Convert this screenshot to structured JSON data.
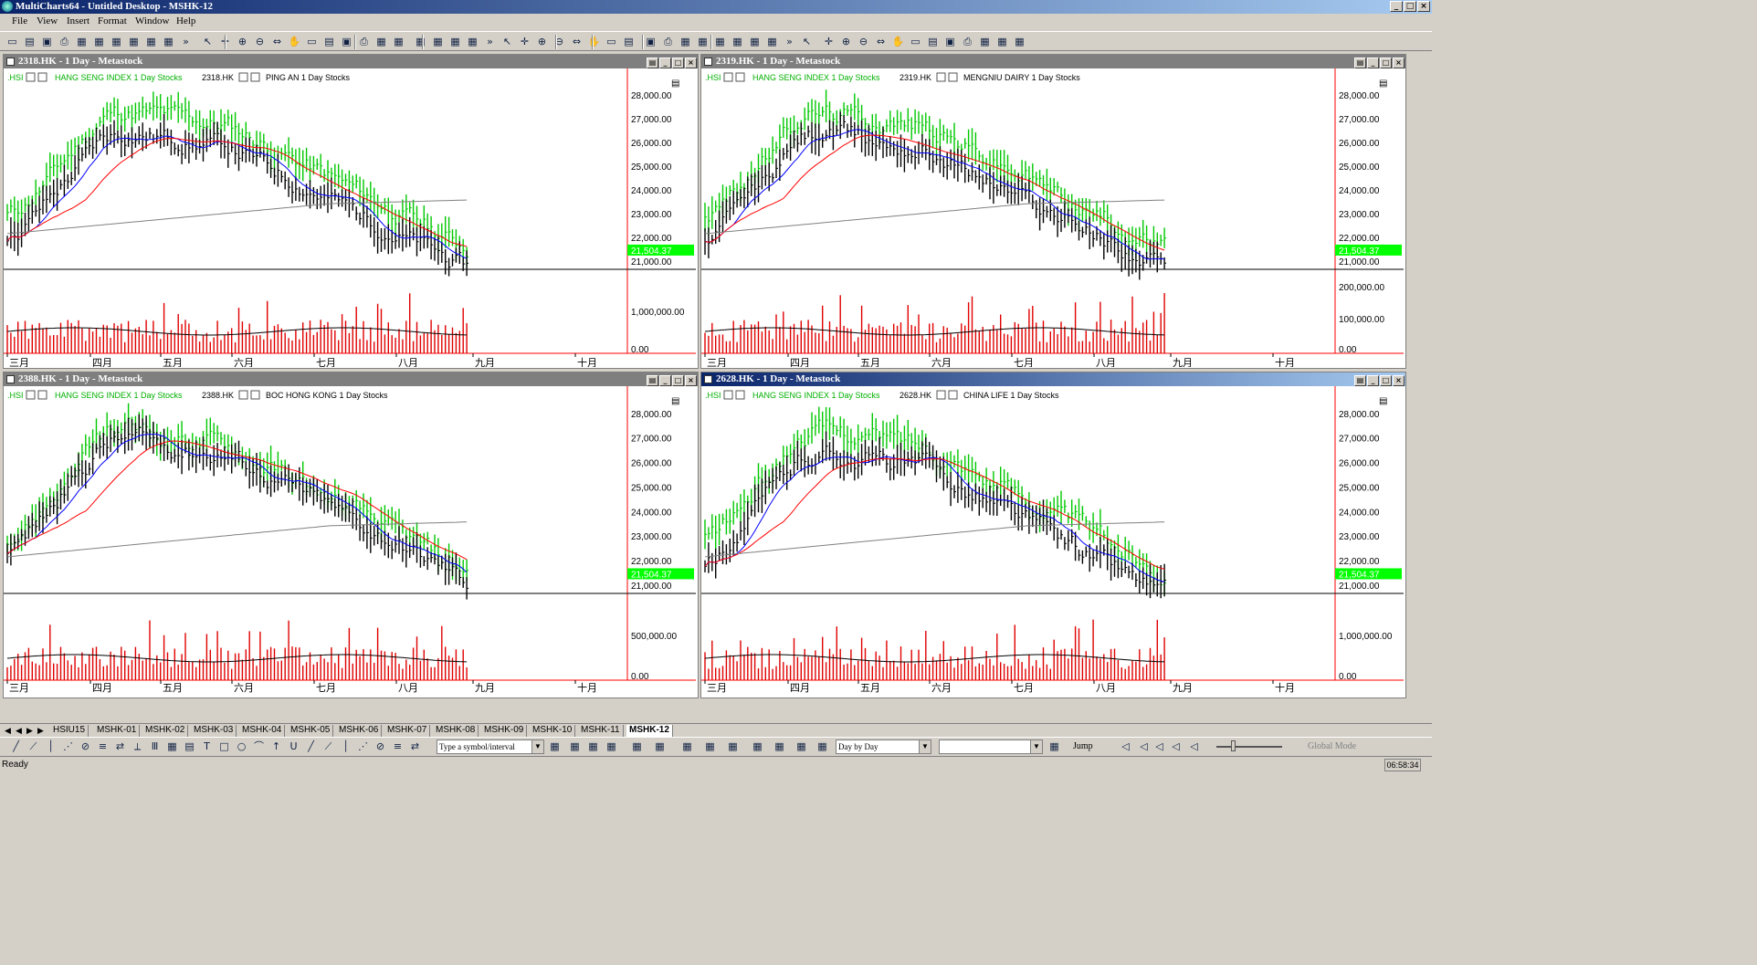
{
  "app": {
    "title": "MultiCharts64 - Untitled Desktop - MSHK-12",
    "menus": [
      "File",
      "View",
      "Insert",
      "Format",
      "Window",
      "Help"
    ]
  },
  "toolbar_icons": [
    "new-icon",
    "open-icon",
    "save-icon",
    "print-icon",
    "chart-icon",
    "chart-icon",
    "chart-icon",
    "chart-icon",
    "chart-icon",
    "chart-icon",
    "more-icon",
    "cursor-icon",
    "crosshair-icon",
    "zoom-in-icon",
    "zoom-out-icon",
    "scroll-icon",
    "hand-icon"
  ],
  "colors": {
    "green_bars": "#00c800",
    "black_bars": "#000000",
    "volume": "#e00000",
    "ma_fast": "#0000ff",
    "ma_mid": "#ff0000",
    "ma_slow": "#808080",
    "price_tag": "#00ff00"
  },
  "windows": [
    {
      "title": "2318.HK - 1 Day - Metastock",
      "legend_hsi": ".HSI",
      "legend_hsi_desc": "HANG SENG INDEX  1 Day  Stocks",
      "legend_sym": "2318.HK",
      "legend_sym_desc": "PING AN  1 Day  Stocks",
      "price_ticks": [
        "28,000.00",
        "27,000.00",
        "26,000.00",
        "25,000.00",
        "24,000.00",
        "23,000.00",
        "22,000.00",
        "21,000.00"
      ],
      "last_price": "21,504.37",
      "vol_ticks": [
        "1,000,000.00",
        "0.00"
      ],
      "months": [
        "三月",
        "四月",
        "五月",
        "六月",
        "七月",
        "八月",
        "九月",
        "十月"
      ],
      "active": false
    },
    {
      "title": "2319.HK - 1 Day - Metastock",
      "legend_hsi": ".HSI",
      "legend_hsi_desc": "HANG SENG INDEX  1 Day  Stocks",
      "legend_sym": "2319.HK",
      "legend_sym_desc": "MENGNIU DAIRY  1 Day  Stocks",
      "price_ticks": [
        "28,000.00",
        "27,000.00",
        "26,000.00",
        "25,000.00",
        "24,000.00",
        "23,000.00",
        "22,000.00",
        "21,000.00"
      ],
      "last_price": "21,504.37",
      "vol_ticks": [
        "200,000.00",
        "100,000.00",
        "0.00"
      ],
      "months": [
        "三月",
        "四月",
        "五月",
        "六月",
        "七月",
        "八月",
        "九月",
        "十月"
      ],
      "active": false
    },
    {
      "title": "2388.HK - 1 Day - Metastock",
      "legend_hsi": ".HSI",
      "legend_hsi_desc": "HANG SENG INDEX  1 Day  Stocks",
      "legend_sym": "2388.HK",
      "legend_sym_desc": "BOC HONG KONG  1 Day  Stocks",
      "price_ticks": [
        "28,000.00",
        "27,000.00",
        "26,000.00",
        "25,000.00",
        "24,000.00",
        "23,000.00",
        "22,000.00",
        "21,000.00"
      ],
      "last_price": "21,504.37",
      "vol_ticks": [
        "500,000.00",
        "0.00"
      ],
      "months": [
        "三月",
        "四月",
        "五月",
        "六月",
        "七月",
        "八月",
        "九月",
        "十月"
      ],
      "active": false
    },
    {
      "title": "2628.HK - 1 Day - Metastock",
      "legend_hsi": ".HSI",
      "legend_hsi_desc": "HANG SENG INDEX  1 Day  Stocks",
      "legend_sym": "2628.HK",
      "legend_sym_desc": "CHINA LIFE  1 Day  Stocks",
      "price_ticks": [
        "28,000.00",
        "27,000.00",
        "26,000.00",
        "25,000.00",
        "24,000.00",
        "23,000.00",
        "22,000.00",
        "21,000.00"
      ],
      "last_price": "21,504.37",
      "vol_ticks": [
        "1,000,000.00",
        "0.00"
      ],
      "months": [
        "三月",
        "四月",
        "五月",
        "六月",
        "七月",
        "八月",
        "九月",
        "十月"
      ],
      "active": true
    }
  ],
  "tabs": [
    "HSIU15",
    "MSHK-01",
    "MSHK-02",
    "MSHK-03",
    "MSHK-04",
    "MSHK-05",
    "MSHK-06",
    "MSHK-07",
    "MSHK-08",
    "MSHK-09",
    "MSHK-10",
    "MSHK-11",
    "MSHK-12"
  ],
  "active_tab": "MSHK-12",
  "bottom": {
    "symbol_placeholder": "Type a symbol/interval",
    "resolution": "Day by Day",
    "jump_label": "Jump",
    "global_mode": "Global Mode"
  },
  "status": {
    "text": "Ready",
    "clock": "06:58:34"
  }
}
